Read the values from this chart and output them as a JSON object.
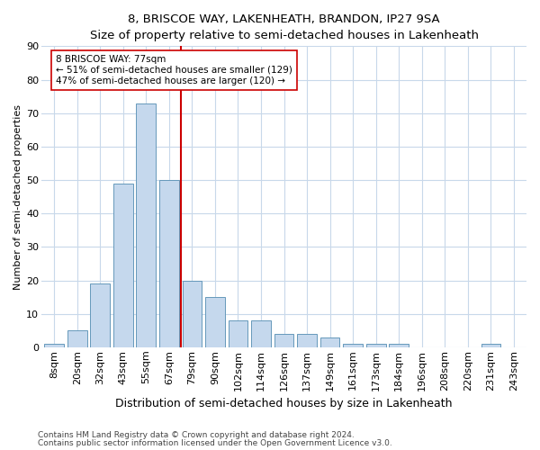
{
  "title": "8, BRISCOE WAY, LAKENHEATH, BRANDON, IP27 9SA",
  "subtitle": "Size of property relative to semi-detached houses in Lakenheath",
  "xlabel": "Distribution of semi-detached houses by size in Lakenheath",
  "ylabel": "Number of semi-detached properties",
  "categories": [
    "8sqm",
    "20sqm",
    "32sqm",
    "43sqm",
    "55sqm",
    "67sqm",
    "79sqm",
    "90sqm",
    "102sqm",
    "114sqm",
    "126sqm",
    "137sqm",
    "149sqm",
    "161sqm",
    "173sqm",
    "184sqm",
    "196sqm",
    "208sqm",
    "220sqm",
    "231sqm",
    "243sqm"
  ],
  "values": [
    1,
    5,
    19,
    49,
    73,
    50,
    20,
    15,
    8,
    8,
    4,
    4,
    3,
    1,
    1,
    1,
    0,
    0,
    0,
    1,
    0
  ],
  "bar_color": "#c5d8ed",
  "bar_edge_color": "#6699bb",
  "vline_x_index": 5.5,
  "vline_color": "#cc0000",
  "annotation_text": "8 BRISCOE WAY: 77sqm\n← 51% of semi-detached houses are smaller (129)\n47% of semi-detached houses are larger (120) →",
  "annotation_box_color": "#ffffff",
  "annotation_box_edge_color": "#cc0000",
  "ylim": [
    0,
    90
  ],
  "yticks": [
    0,
    10,
    20,
    30,
    40,
    50,
    60,
    70,
    80,
    90
  ],
  "footnote1": "Contains HM Land Registry data © Crown copyright and database right 2024.",
  "footnote2": "Contains public sector information licensed under the Open Government Licence v3.0.",
  "bg_color": "#ffffff",
  "grid_color": "#c8d8ea",
  "title_fontsize": 9.5,
  "subtitle_fontsize": 9,
  "xlabel_fontsize": 9,
  "ylabel_fontsize": 8,
  "tick_fontsize": 8,
  "annot_fontsize": 7.5
}
